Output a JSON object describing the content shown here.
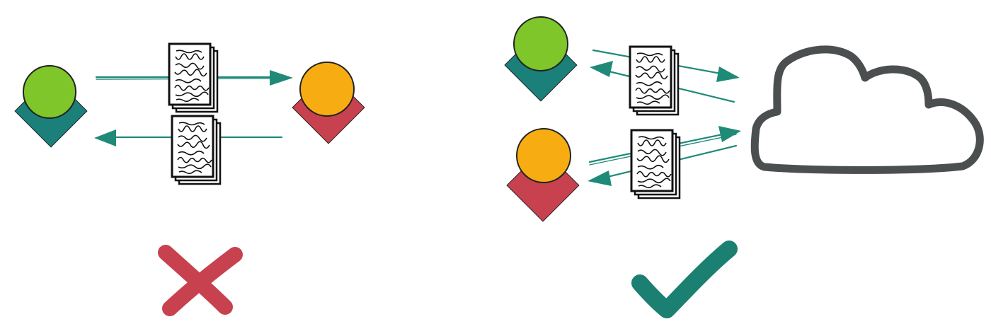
{
  "colors": {
    "user_green": "#7ec62a",
    "user_green_diamond": "#1b7f7a",
    "user_orange": "#f7ad12",
    "user_orange_diamond": "#c8414f",
    "arrow": "#1f8a78",
    "document_stroke": "#111111",
    "document_fill": "#ffffff",
    "cloud_stroke": "#4b4f4f",
    "cross_mark": "#c8414f",
    "check_mark": "#1b7f72"
  },
  "left_panel": {
    "nodes": [
      {
        "name": "green-user",
        "circle_color": "#7ec62a",
        "diamond_color": "#1b7f7a"
      },
      {
        "name": "orange-user",
        "circle_color": "#f7ad12",
        "diamond_color": "#c8414f"
      }
    ],
    "transfers": [
      {
        "direction": "to-orange",
        "document": "file-stack"
      },
      {
        "direction": "to-green",
        "document": "file-stack"
      }
    ],
    "verdict": {
      "icon": "cross-icon",
      "meaning": "bad"
    }
  },
  "right_panel": {
    "nodes": [
      {
        "name": "green-user",
        "circle_color": "#7ec62a",
        "diamond_color": "#1b7f7a"
      },
      {
        "name": "orange-user",
        "circle_color": "#f7ad12",
        "diamond_color": "#c8414f"
      }
    ],
    "hub": {
      "icon": "cloud-icon"
    },
    "transfers": [
      {
        "from": "green-user",
        "to": "cloud"
      },
      {
        "from": "cloud",
        "to": "green-user"
      },
      {
        "from": "orange-user",
        "to": "cloud"
      },
      {
        "from": "cloud",
        "to": "orange-user"
      }
    ],
    "verdict": {
      "icon": "check-icon",
      "meaning": "good"
    }
  }
}
